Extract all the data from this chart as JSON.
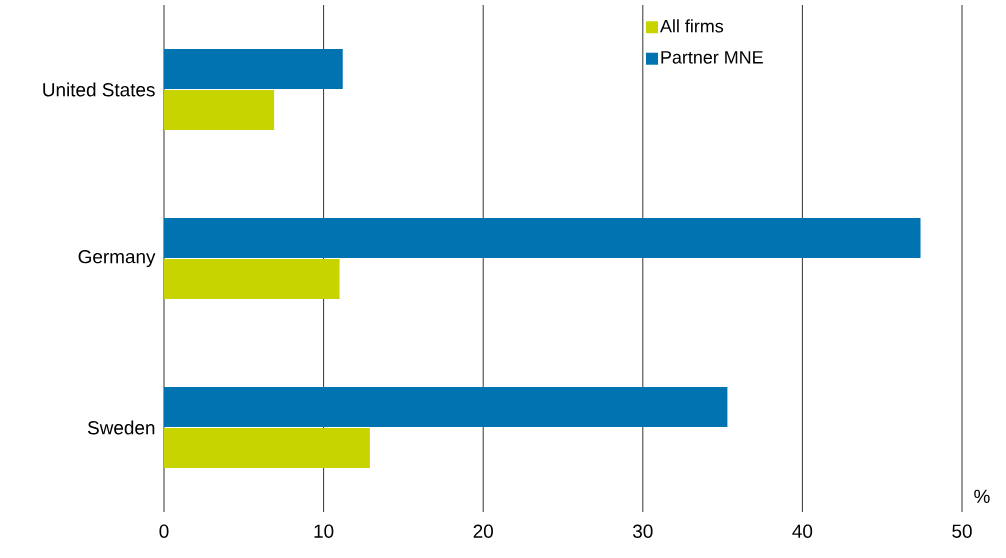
{
  "chart_data": {
    "type": "bar",
    "orientation": "horizontal",
    "xlabel": "%",
    "categories": [
      "United States",
      "Germany",
      "Sweden"
    ],
    "series": [
      {
        "name": "All firms",
        "color": "#c8d400",
        "values": [
          6.9,
          11.0,
          12.9
        ]
      },
      {
        "name": "Partner MNE",
        "color": "#0073b0",
        "values": [
          11.2,
          47.4,
          35.3
        ]
      }
    ],
    "xlim": [
      0,
      50
    ],
    "xticks": [
      0,
      10,
      20,
      30,
      40,
      50
    ],
    "grid": "x",
    "legend": "top right"
  }
}
